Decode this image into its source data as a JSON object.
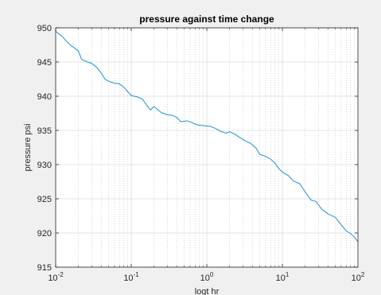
{
  "chart_data": {
    "type": "line",
    "title": "pressure against time change",
    "xlabel": "logt hr",
    "ylabel": "pressure psi",
    "xscale": "log",
    "xlim": [
      0.01,
      100
    ],
    "ylim": [
      915,
      950
    ],
    "grid": "major and minor on",
    "x_tick_labels": [
      {
        "base": "10",
        "exp": "-2"
      },
      {
        "base": "10",
        "exp": "-1"
      },
      {
        "base": "10",
        "exp": "0"
      },
      {
        "base": "10",
        "exp": "1"
      },
      {
        "base": "10",
        "exp": "2"
      }
    ],
    "y_tick_labels": [
      "915",
      "920",
      "925",
      "930",
      "935",
      "940",
      "945",
      "950"
    ],
    "series": [
      {
        "color": "#1f8fd8",
        "x": [
          0.01,
          0.012,
          0.014,
          0.016,
          0.018,
          0.02,
          0.022,
          0.025,
          0.03,
          0.035,
          0.04,
          0.045,
          0.05,
          0.06,
          0.07,
          0.08,
          0.1,
          0.12,
          0.14,
          0.16,
          0.18,
          0.2,
          0.25,
          0.3,
          0.35,
          0.4,
          0.45,
          0.55,
          0.65,
          0.75,
          0.9,
          1.1,
          1.3,
          1.5,
          1.8,
          2.0,
          2.3,
          2.7,
          3.2,
          3.8,
          4.5,
          5.0,
          6.0,
          7.0,
          8.0,
          9.0,
          10,
          12,
          14,
          17,
          20,
          24,
          28,
          33,
          40,
          50,
          60,
          70,
          80,
          90,
          100
        ],
        "y": [
          949.5,
          948.8,
          948.0,
          947.4,
          947.0,
          946.6,
          945.4,
          945.1,
          944.8,
          944.2,
          943.4,
          942.5,
          942.2,
          941.9,
          941.8,
          941.3,
          940.1,
          939.9,
          939.6,
          938.7,
          938.0,
          938.5,
          937.6,
          937.3,
          937.2,
          936.9,
          936.3,
          936.4,
          936.1,
          935.8,
          935.7,
          935.6,
          935.3,
          934.9,
          934.6,
          934.8,
          934.5,
          934.0,
          933.5,
          933.1,
          932.4,
          931.5,
          931.2,
          930.8,
          930.2,
          929.4,
          928.9,
          928.4,
          927.6,
          927.2,
          926.0,
          924.8,
          924.6,
          923.5,
          922.8,
          922.3,
          921.2,
          920.3,
          919.9,
          919.4,
          918.7
        ]
      }
    ]
  }
}
